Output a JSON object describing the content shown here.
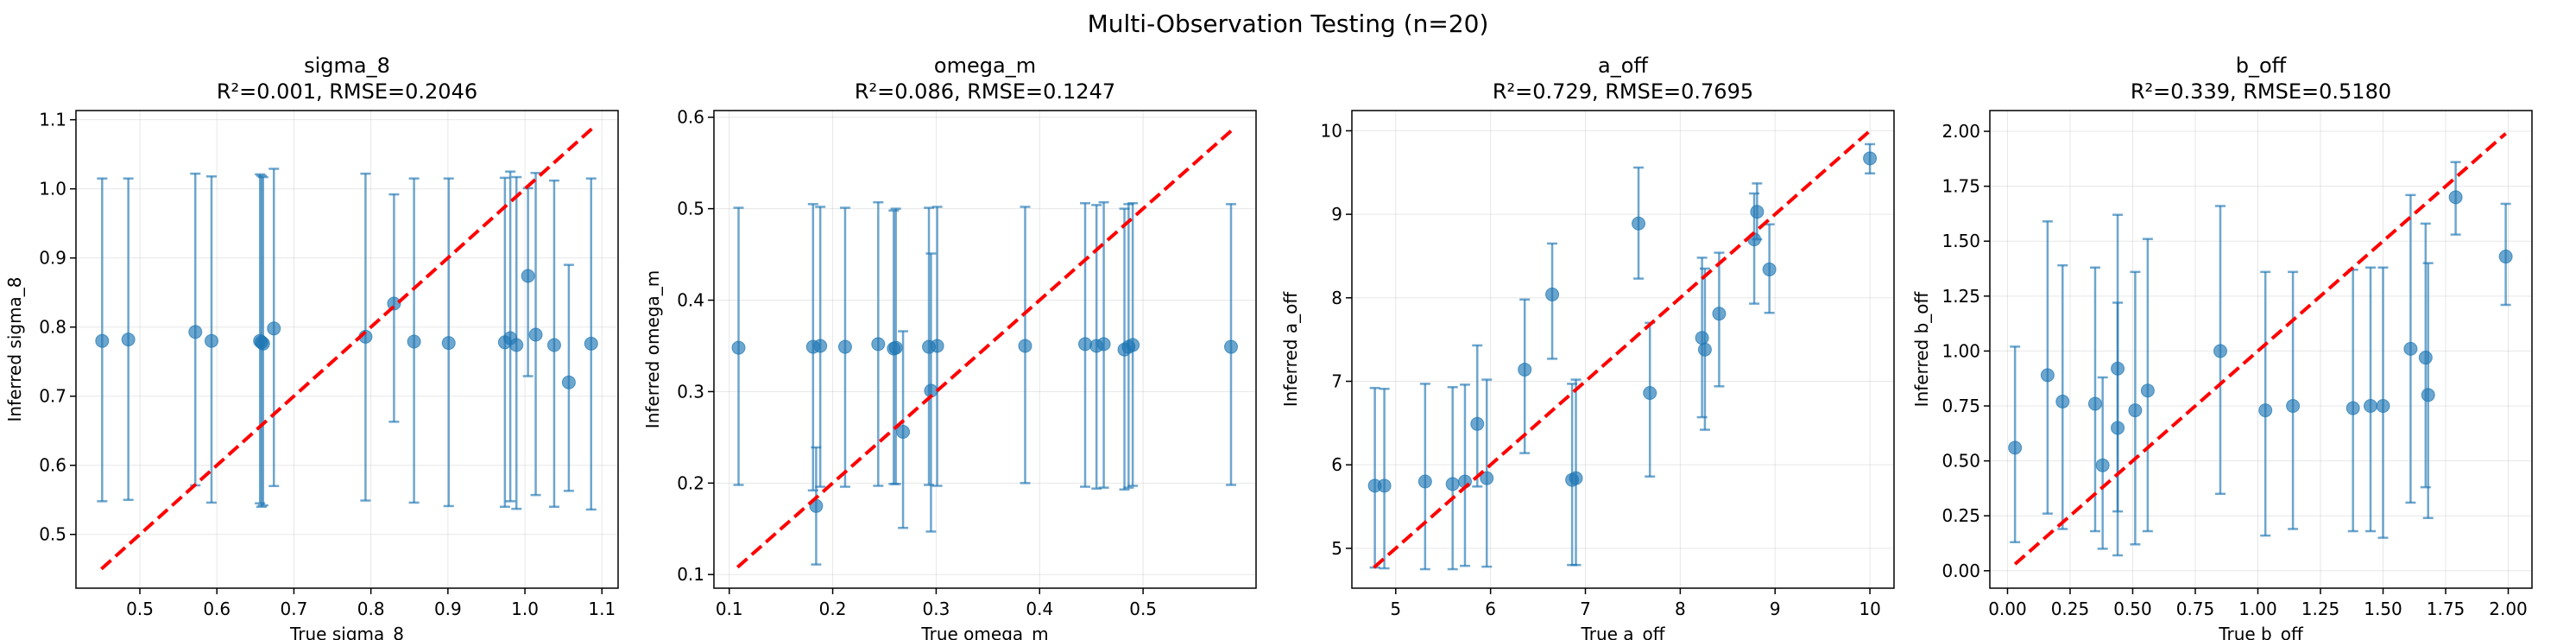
{
  "suptitle": "Multi-Observation Testing (n=20)",
  "colors": {
    "points": "#1f77b4",
    "identity_line": "#ff0000",
    "grid": "#b0b0b0"
  },
  "chart_data": [
    {
      "type": "scatter",
      "title_line1": "sigma_8",
      "title_line2": "R²=0.001, RMSE=0.2046",
      "xlabel": "True sigma_8",
      "ylabel": "Inferred sigma_8",
      "xlim": [
        0.417,
        1.121
      ],
      "ylim": [
        0.4222,
        1.1133
      ],
      "xticks": [
        0.5,
        0.6,
        0.7,
        0.8,
        0.9,
        1.0,
        1.1
      ],
      "xtick_labels": [
        "0.5",
        "0.6",
        "0.7",
        "0.8",
        "0.9",
        "1.0",
        "1.1"
      ],
      "yticks": [
        0.5,
        0.6,
        0.7,
        0.8,
        0.9,
        1.0,
        1.1
      ],
      "ytick_labels": [
        "0.5",
        "0.6",
        "0.7",
        "0.8",
        "0.9",
        "1.0",
        "1.1"
      ],
      "identity_line": [
        0.45,
        1.09
      ],
      "grid": true,
      "points": [
        {
          "x": 0.451,
          "y": 0.78,
          "lo": 0.548,
          "hi": 1.015
        },
        {
          "x": 0.485,
          "y": 0.782,
          "lo": 0.55,
          "hi": 1.015
        },
        {
          "x": 0.572,
          "y": 0.793,
          "lo": 0.571,
          "hi": 1.022
        },
        {
          "x": 0.593,
          "y": 0.78,
          "lo": 0.546,
          "hi": 1.018
        },
        {
          "x": 0.656,
          "y": 0.78,
          "lo": 0.545,
          "hi": 1.021
        },
        {
          "x": 0.658,
          "y": 0.778,
          "lo": 0.54,
          "hi": 1.019
        },
        {
          "x": 0.66,
          "y": 0.776,
          "lo": 0.542,
          "hi": 1.017
        },
        {
          "x": 0.674,
          "y": 0.798,
          "lo": 0.57,
          "hi": 1.029
        },
        {
          "x": 0.793,
          "y": 0.786,
          "lo": 0.549,
          "hi": 1.022
        },
        {
          "x": 0.83,
          "y": 0.834,
          "lo": 0.663,
          "hi": 0.992
        },
        {
          "x": 0.856,
          "y": 0.779,
          "lo": 0.546,
          "hi": 1.015
        },
        {
          "x": 0.901,
          "y": 0.777,
          "lo": 0.541,
          "hi": 1.015
        },
        {
          "x": 0.974,
          "y": 0.778,
          "lo": 0.54,
          "hi": 1.016
        },
        {
          "x": 0.981,
          "y": 0.784,
          "lo": 0.548,
          "hi": 1.025
        },
        {
          "x": 0.989,
          "y": 0.774,
          "lo": 0.537,
          "hi": 1.017
        },
        {
          "x": 1.004,
          "y": 0.874,
          "lo": 0.729,
          "hi": 1.001
        },
        {
          "x": 1.014,
          "y": 0.789,
          "lo": 0.557,
          "hi": 1.023
        },
        {
          "x": 1.038,
          "y": 0.774,
          "lo": 0.54,
          "hi": 1.012
        },
        {
          "x": 1.057,
          "y": 0.72,
          "lo": 0.563,
          "hi": 0.89
        },
        {
          "x": 1.086,
          "y": 0.776,
          "lo": 0.536,
          "hi": 1.015
        }
      ]
    },
    {
      "type": "scatter",
      "title_line1": "omega_m",
      "title_line2": "R²=0.086, RMSE=0.1247",
      "xlabel": "True omega_m",
      "ylabel": "Inferred omega_m",
      "xlim": [
        0.0852,
        0.6092
      ],
      "ylim": [
        0.0851,
        0.6073
      ],
      "xticks": [
        0.1,
        0.2,
        0.3,
        0.4,
        0.5
      ],
      "xtick_labels": [
        "0.1",
        "0.2",
        "0.3",
        "0.4",
        "0.5"
      ],
      "yticks": [
        0.1,
        0.2,
        0.3,
        0.4,
        0.5,
        0.6
      ],
      "ytick_labels": [
        "0.1",
        "0.2",
        "0.3",
        "0.4",
        "0.5",
        "0.6"
      ],
      "identity_line": [
        0.108,
        0.585
      ],
      "grid": true,
      "points": [
        {
          "x": 0.109,
          "y": 0.348,
          "lo": 0.198,
          "hi": 0.501
        },
        {
          "x": 0.181,
          "y": 0.349,
          "lo": 0.192,
          "hi": 0.505
        },
        {
          "x": 0.184,
          "y": 0.175,
          "lo": 0.111,
          "hi": 0.239
        },
        {
          "x": 0.188,
          "y": 0.35,
          "lo": 0.196,
          "hi": 0.502
        },
        {
          "x": 0.212,
          "y": 0.349,
          "lo": 0.196,
          "hi": 0.501
        },
        {
          "x": 0.244,
          "y": 0.352,
          "lo": 0.197,
          "hi": 0.507
        },
        {
          "x": 0.259,
          "y": 0.347,
          "lo": 0.199,
          "hi": 0.498
        },
        {
          "x": 0.261,
          "y": 0.348,
          "lo": 0.199,
          "hi": 0.5
        },
        {
          "x": 0.268,
          "y": 0.256,
          "lo": 0.151,
          "hi": 0.366
        },
        {
          "x": 0.293,
          "y": 0.349,
          "lo": 0.198,
          "hi": 0.501
        },
        {
          "x": 0.295,
          "y": 0.301,
          "lo": 0.147,
          "hi": 0.451
        },
        {
          "x": 0.301,
          "y": 0.35,
          "lo": 0.197,
          "hi": 0.502
        },
        {
          "x": 0.386,
          "y": 0.35,
          "lo": 0.2,
          "hi": 0.502
        },
        {
          "x": 0.444,
          "y": 0.352,
          "lo": 0.196,
          "hi": 0.506
        },
        {
          "x": 0.455,
          "y": 0.35,
          "lo": 0.194,
          "hi": 0.504
        },
        {
          "x": 0.462,
          "y": 0.352,
          "lo": 0.195,
          "hi": 0.507
        },
        {
          "x": 0.482,
          "y": 0.346,
          "lo": 0.193,
          "hi": 0.5
        },
        {
          "x": 0.486,
          "y": 0.349,
          "lo": 0.195,
          "hi": 0.505
        },
        {
          "x": 0.49,
          "y": 0.351,
          "lo": 0.197,
          "hi": 0.506
        },
        {
          "x": 0.585,
          "y": 0.349,
          "lo": 0.198,
          "hi": 0.505
        }
      ]
    },
    {
      "type": "scatter",
      "title_line1": "a_off",
      "title_line2": "R²=0.729, RMSE=0.7695",
      "xlabel": "True a_off",
      "ylabel": "Inferred a_off",
      "xlim": [
        4.5377,
        10.2541
      ],
      "ylim": [
        4.5227,
        10.2424
      ],
      "xticks": [
        5,
        6,
        7,
        8,
        9,
        10
      ],
      "xtick_labels": [
        "5",
        "6",
        "7",
        "8",
        "9",
        "10"
      ],
      "yticks": [
        5,
        6,
        7,
        8,
        9,
        10
      ],
      "ytick_labels": [
        "5",
        "6",
        "7",
        "8",
        "9",
        "10"
      ],
      "identity_line": [
        4.77,
        10.0
      ],
      "grid": true,
      "points": [
        {
          "x": 4.78,
          "y": 5.75,
          "lo": 4.77,
          "hi": 6.92
        },
        {
          "x": 4.88,
          "y": 5.75,
          "lo": 4.76,
          "hi": 6.91
        },
        {
          "x": 5.31,
          "y": 5.8,
          "lo": 4.75,
          "hi": 6.97
        },
        {
          "x": 5.6,
          "y": 5.77,
          "lo": 4.75,
          "hi": 6.93
        },
        {
          "x": 5.73,
          "y": 5.8,
          "lo": 4.79,
          "hi": 6.96
        },
        {
          "x": 5.86,
          "y": 6.49,
          "lo": 5.74,
          "hi": 7.43
        },
        {
          "x": 5.96,
          "y": 5.84,
          "lo": 4.78,
          "hi": 7.02
        },
        {
          "x": 6.36,
          "y": 7.14,
          "lo": 6.14,
          "hi": 7.98
        },
        {
          "x": 6.65,
          "y": 8.04,
          "lo": 7.27,
          "hi": 8.65
        },
        {
          "x": 6.86,
          "y": 5.82,
          "lo": 4.8,
          "hi": 6.97
        },
        {
          "x": 6.9,
          "y": 5.84,
          "lo": 4.8,
          "hi": 7.02
        },
        {
          "x": 7.56,
          "y": 8.89,
          "lo": 8.23,
          "hi": 9.56
        },
        {
          "x": 7.68,
          "y": 6.86,
          "lo": 5.86,
          "hi": 7.7
        },
        {
          "x": 8.23,
          "y": 7.52,
          "lo": 6.57,
          "hi": 8.48
        },
        {
          "x": 8.26,
          "y": 7.38,
          "lo": 6.42,
          "hi": 8.35
        },
        {
          "x": 8.41,
          "y": 7.81,
          "lo": 6.94,
          "hi": 8.54
        },
        {
          "x": 8.78,
          "y": 8.7,
          "lo": 7.93,
          "hi": 9.25
        },
        {
          "x": 8.81,
          "y": 9.03,
          "lo": 8.7,
          "hi": 9.37
        },
        {
          "x": 8.94,
          "y": 8.34,
          "lo": 7.82,
          "hi": 8.88
        },
        {
          "x": 10.0,
          "y": 9.67,
          "lo": 9.49,
          "hi": 9.84
        }
      ]
    },
    {
      "type": "scatter",
      "title_line1": "b_off",
      "title_line2": "R²=0.339, RMSE=0.5180",
      "xlabel": "True b_off",
      "ylabel": "Inferred b_off",
      "xlim": [
        -0.0706,
        2.0948
      ],
      "ylim": [
        -0.0794,
        2.0945
      ],
      "xticks": [
        0.0,
        0.25,
        0.5,
        0.75,
        1.0,
        1.25,
        1.5,
        1.75,
        2.0
      ],
      "xtick_labels": [
        "0.00",
        "0.25",
        "0.50",
        "0.75",
        "1.00",
        "1.25",
        "1.50",
        "1.75",
        "2.00"
      ],
      "yticks": [
        0.0,
        0.25,
        0.5,
        0.75,
        1.0,
        1.25,
        1.5,
        1.75,
        2.0
      ],
      "ytick_labels": [
        "0.00",
        "0.25",
        "0.50",
        "0.75",
        "1.00",
        "1.25",
        "1.50",
        "1.75",
        "2.00"
      ],
      "identity_line": [
        0.03,
        1.99
      ],
      "grid": true,
      "points": [
        {
          "x": 0.03,
          "y": 0.56,
          "lo": 0.13,
          "hi": 1.02
        },
        {
          "x": 0.16,
          "y": 0.89,
          "lo": 0.26,
          "hi": 1.59
        },
        {
          "x": 0.22,
          "y": 0.77,
          "lo": 0.19,
          "hi": 1.39
        },
        {
          "x": 0.35,
          "y": 0.76,
          "lo": 0.18,
          "hi": 1.38
        },
        {
          "x": 0.38,
          "y": 0.48,
          "lo": 0.1,
          "hi": 0.88
        },
        {
          "x": 0.44,
          "y": 0.65,
          "lo": 0.07,
          "hi": 1.22
        },
        {
          "x": 0.44,
          "y": 0.92,
          "lo": 0.27,
          "hi": 1.62
        },
        {
          "x": 0.51,
          "y": 0.73,
          "lo": 0.12,
          "hi": 1.36
        },
        {
          "x": 0.56,
          "y": 0.82,
          "lo": 0.18,
          "hi": 1.51
        },
        {
          "x": 0.85,
          "y": 1.0,
          "lo": 0.35,
          "hi": 1.66
        },
        {
          "x": 1.03,
          "y": 0.73,
          "lo": 0.16,
          "hi": 1.36
        },
        {
          "x": 1.14,
          "y": 0.75,
          "lo": 0.19,
          "hi": 1.36
        },
        {
          "x": 1.38,
          "y": 0.74,
          "lo": 0.18,
          "hi": 1.37
        },
        {
          "x": 1.45,
          "y": 0.75,
          "lo": 0.18,
          "hi": 1.38
        },
        {
          "x": 1.5,
          "y": 0.75,
          "lo": 0.15,
          "hi": 1.38
        },
        {
          "x": 1.61,
          "y": 1.01,
          "lo": 0.31,
          "hi": 1.71
        },
        {
          "x": 1.67,
          "y": 0.97,
          "lo": 0.38,
          "hi": 1.58
        },
        {
          "x": 1.68,
          "y": 0.8,
          "lo": 0.24,
          "hi": 1.4
        },
        {
          "x": 1.79,
          "y": 1.7,
          "lo": 1.53,
          "hi": 1.86
        },
        {
          "x": 1.99,
          "y": 1.43,
          "lo": 1.21,
          "hi": 1.67
        }
      ]
    }
  ]
}
